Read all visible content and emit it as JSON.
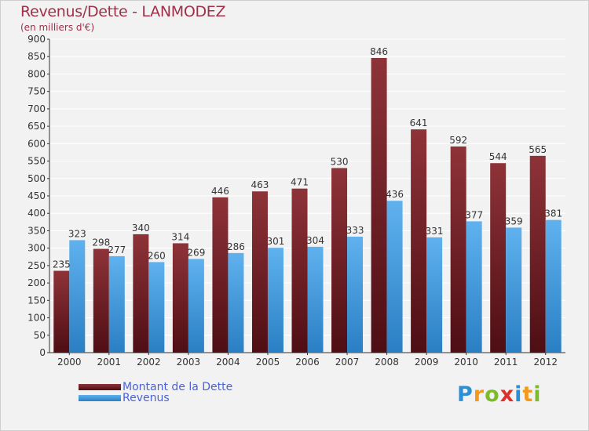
{
  "header": {
    "title": "Revenus/Dette - LANMODEZ",
    "subtitle": "(en milliers d'€)"
  },
  "colors": {
    "dette": "#7a1c24",
    "dette_light": "#8e3338",
    "revenus": "#3f9ae0",
    "revenus_light": "#5fb2ee",
    "grid": "#ffffff",
    "plot_bg": "#f2f2f2",
    "title": "#a0304a",
    "legend_text": "#4a62d8"
  },
  "chart_data": {
    "type": "bar",
    "title": "Revenus/Dette - LANMODEZ",
    "subtitle": "(en milliers d'€)",
    "xlabel": "",
    "ylabel": "",
    "ylim": [
      0,
      900
    ],
    "yticks": [
      0,
      50,
      100,
      150,
      200,
      250,
      300,
      350,
      400,
      450,
      500,
      550,
      600,
      650,
      700,
      750,
      800,
      850,
      900
    ],
    "grid": true,
    "legend_position": "bottom-left",
    "categories": [
      "2000",
      "2001",
      "2002",
      "2003",
      "2004",
      "2005",
      "2006",
      "2007",
      "2008",
      "2009",
      "2010",
      "2011",
      "2012"
    ],
    "series": [
      {
        "name": "Montant de la Dette",
        "values": [
          235,
          298,
          340,
          314,
          446,
          463,
          471,
          530,
          846,
          641,
          592,
          544,
          565
        ]
      },
      {
        "name": "Revenus",
        "values": [
          323,
          277,
          260,
          269,
          286,
          301,
          304,
          333,
          436,
          331,
          377,
          359,
          381
        ]
      }
    ]
  },
  "legend": {
    "dette_label": "Montant de la Dette",
    "revenus_label": "Revenus"
  },
  "logo": {
    "letters": [
      "P",
      "r",
      "o",
      "x",
      "i",
      "t",
      "i"
    ],
    "colors": [
      "#2b8fd6",
      "#f39a1d",
      "#7dbb2b",
      "#d9322b",
      "#2b8fd6",
      "#f39a1d",
      "#7dbb2b"
    ]
  }
}
